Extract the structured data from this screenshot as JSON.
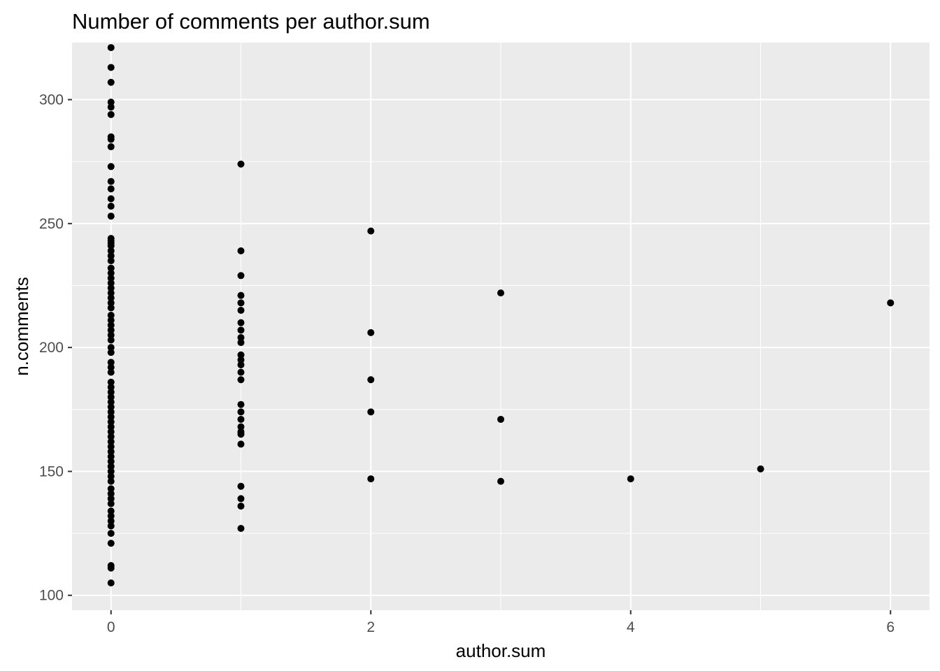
{
  "chart_data": {
    "type": "scatter",
    "title": "Number of comments per author.sum",
    "xlabel": "author.sum",
    "ylabel": "n.comments",
    "xlim": [
      -0.3,
      6.3
    ],
    "ylim": [
      94,
      323
    ],
    "x_ticks": [
      0,
      2,
      4,
      6
    ],
    "x_tick_labels": [
      "0",
      "2",
      "4",
      "6"
    ],
    "y_ticks": [
      100,
      150,
      200,
      250,
      300
    ],
    "y_tick_labels": [
      "100",
      "150",
      "200",
      "250",
      "300"
    ],
    "grid": true,
    "legend": "none",
    "colors": {
      "panel": "#ebebeb",
      "grid": "#ffffff",
      "point": "#000000",
      "tick_text": "#4d4d4d"
    },
    "points": [
      [
        0,
        321
      ],
      [
        0,
        313
      ],
      [
        0,
        307
      ],
      [
        0,
        299
      ],
      [
        0,
        297
      ],
      [
        0,
        294
      ],
      [
        0,
        285
      ],
      [
        0,
        284
      ],
      [
        0,
        281
      ],
      [
        0,
        273
      ],
      [
        0,
        267
      ],
      [
        0,
        264
      ],
      [
        0,
        260
      ],
      [
        0,
        257
      ],
      [
        0,
        253
      ],
      [
        0,
        244
      ],
      [
        0,
        243
      ],
      [
        0,
        242
      ],
      [
        0,
        241
      ],
      [
        0,
        239
      ],
      [
        0,
        237
      ],
      [
        0,
        235
      ],
      [
        0,
        232
      ],
      [
        0,
        230
      ],
      [
        0,
        228
      ],
      [
        0,
        226
      ],
      [
        0,
        224
      ],
      [
        0,
        222
      ],
      [
        0,
        220
      ],
      [
        0,
        218
      ],
      [
        0,
        216
      ],
      [
        0,
        213
      ],
      [
        0,
        211
      ],
      [
        0,
        209
      ],
      [
        0,
        207
      ],
      [
        0,
        205
      ],
      [
        0,
        203
      ],
      [
        0,
        200
      ],
      [
        0,
        198
      ],
      [
        0,
        194
      ],
      [
        0,
        192
      ],
      [
        0,
        190
      ],
      [
        0,
        186
      ],
      [
        0,
        184
      ],
      [
        0,
        182
      ],
      [
        0,
        180
      ],
      [
        0,
        178
      ],
      [
        0,
        176
      ],
      [
        0,
        174
      ],
      [
        0,
        172
      ],
      [
        0,
        170
      ],
      [
        0,
        168
      ],
      [
        0,
        166
      ],
      [
        0,
        164
      ],
      [
        0,
        162
      ],
      [
        0,
        160
      ],
      [
        0,
        158
      ],
      [
        0,
        156
      ],
      [
        0,
        154
      ],
      [
        0,
        152
      ],
      [
        0,
        150
      ],
      [
        0,
        148
      ],
      [
        0,
        146
      ],
      [
        0,
        143
      ],
      [
        0,
        141
      ],
      [
        0,
        139
      ],
      [
        0,
        137
      ],
      [
        0,
        134
      ],
      [
        0,
        132
      ],
      [
        0,
        130
      ],
      [
        0,
        128
      ],
      [
        0,
        125
      ],
      [
        0,
        121
      ],
      [
        0,
        112
      ],
      [
        0,
        111
      ],
      [
        0,
        105
      ],
      [
        1,
        274
      ],
      [
        1,
        239
      ],
      [
        1,
        229
      ],
      [
        1,
        221
      ],
      [
        1,
        218
      ],
      [
        1,
        215
      ],
      [
        1,
        210
      ],
      [
        1,
        207
      ],
      [
        1,
        204
      ],
      [
        1,
        202
      ],
      [
        1,
        197
      ],
      [
        1,
        195
      ],
      [
        1,
        193
      ],
      [
        1,
        190
      ],
      [
        1,
        187
      ],
      [
        1,
        177
      ],
      [
        1,
        174
      ],
      [
        1,
        171
      ],
      [
        1,
        168
      ],
      [
        1,
        166
      ],
      [
        1,
        165
      ],
      [
        1,
        161
      ],
      [
        1,
        144
      ],
      [
        1,
        139
      ],
      [
        1,
        136
      ],
      [
        1,
        127
      ],
      [
        2,
        247
      ],
      [
        2,
        206
      ],
      [
        2,
        187
      ],
      [
        2,
        174
      ],
      [
        2,
        147
      ],
      [
        3,
        222
      ],
      [
        3,
        171
      ],
      [
        3,
        146
      ],
      [
        4,
        147
      ],
      [
        5,
        151
      ],
      [
        6,
        218
      ]
    ]
  }
}
